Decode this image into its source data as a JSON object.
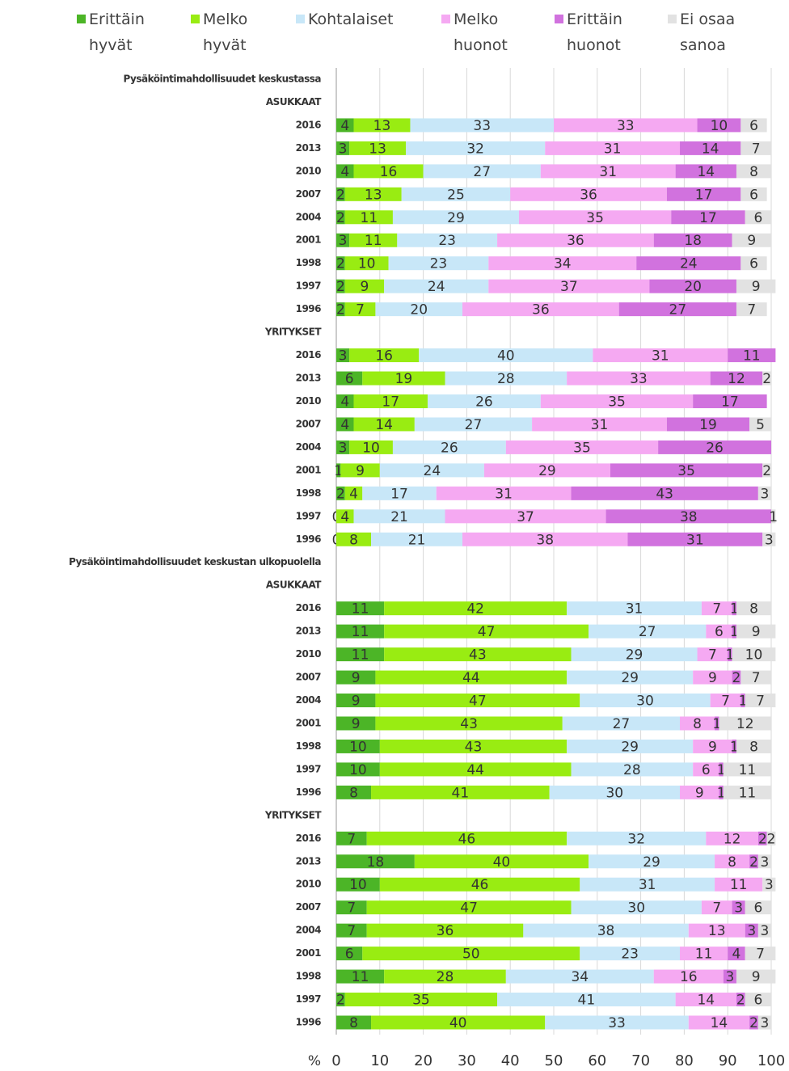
{
  "chart_data": {
    "type": "stacked-barh",
    "xlabel": "%",
    "xlim": [
      0,
      100
    ],
    "xticks": [
      0,
      10,
      20,
      30,
      40,
      50,
      60,
      70,
      80,
      90,
      100
    ],
    "grid": true,
    "categories": [
      "Pysäköintimahdollisuudet keskustassa",
      "ASUKKAAT",
      "2016",
      "2013",
      "2010",
      "2007",
      "2004",
      "2001",
      "1998",
      "1997",
      "1996",
      "YRITYKSET",
      "2016",
      "2013",
      "2010",
      "2007",
      "2004",
      "2001",
      "1998",
      "1997",
      "1996",
      "Pysäköintimahdollisuudet keskustan ulkopuolella",
      "ASUKKAAT",
      "2016",
      "2013",
      "2010",
      "2007",
      "2004",
      "2001",
      "1998",
      "1997",
      "1996",
      "YRITYKSET",
      "2016",
      "2013",
      "2010",
      "2007",
      "2004",
      "2001",
      "1998",
      "1997",
      "1996"
    ],
    "series": [
      {
        "name": "Erittäin hyvät",
        "color": "#4cb527",
        "values": [
          null,
          null,
          4,
          3,
          4,
          2,
          2,
          3,
          2,
          2,
          2,
          null,
          3,
          6,
          4,
          4,
          3,
          1,
          2,
          0,
          0,
          null,
          null,
          11,
          11,
          11,
          9,
          9,
          9,
          10,
          10,
          8,
          null,
          7,
          18,
          10,
          7,
          7,
          6,
          11,
          2,
          8
        ]
      },
      {
        "name": "Melko hyvät",
        "color": "#99ec12",
        "values": [
          null,
          null,
          13,
          13,
          16,
          13,
          11,
          11,
          10,
          9,
          7,
          null,
          16,
          19,
          17,
          14,
          10,
          9,
          4,
          4,
          8,
          null,
          null,
          42,
          47,
          43,
          44,
          47,
          43,
          43,
          44,
          41,
          null,
          46,
          40,
          46,
          47,
          36,
          50,
          28,
          35,
          40
        ]
      },
      {
        "name": "Kohtalaiset",
        "color": "#c8e7f8",
        "values": [
          null,
          null,
          33,
          32,
          27,
          25,
          29,
          23,
          23,
          24,
          20,
          null,
          40,
          28,
          26,
          27,
          26,
          24,
          17,
          21,
          21,
          null,
          null,
          31,
          27,
          29,
          29,
          30,
          27,
          29,
          28,
          30,
          null,
          32,
          29,
          31,
          30,
          38,
          23,
          34,
          41,
          33
        ]
      },
      {
        "name": "Melko huonot",
        "color": "#f5a9f2",
        "values": [
          null,
          null,
          33,
          31,
          31,
          36,
          35,
          36,
          34,
          37,
          36,
          null,
          31,
          33,
          35,
          31,
          35,
          29,
          31,
          37,
          38,
          null,
          null,
          7,
          6,
          7,
          9,
          7,
          8,
          9,
          6,
          9,
          null,
          12,
          8,
          11,
          7,
          13,
          11,
          16,
          14,
          14
        ]
      },
      {
        "name": "Erittäin huonot",
        "color": "#d172de",
        "values": [
          null,
          null,
          10,
          14,
          14,
          17,
          17,
          18,
          24,
          20,
          27,
          null,
          11,
          12,
          17,
          19,
          26,
          35,
          43,
          38,
          31,
          null,
          null,
          1,
          1,
          1,
          2,
          1,
          1,
          1,
          1,
          1,
          null,
          2,
          2,
          null,
          3,
          3,
          4,
          3,
          2,
          2
        ]
      },
      {
        "name": "Ei osaa sanoa",
        "color": "#e2e2e2",
        "values": [
          null,
          null,
          6,
          7,
          8,
          6,
          6,
          9,
          6,
          9,
          7,
          null,
          null,
          2,
          null,
          5,
          null,
          2,
          3,
          1,
          3,
          null,
          null,
          8,
          9,
          10,
          7,
          7,
          12,
          8,
          11,
          11,
          null,
          2,
          3,
          3,
          6,
          3,
          7,
          9,
          6,
          3
        ]
      }
    ]
  }
}
